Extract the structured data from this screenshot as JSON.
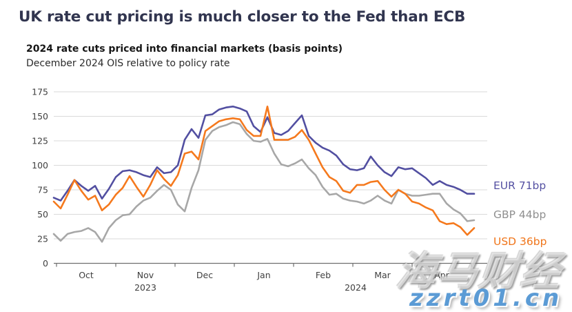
{
  "page_title": "UK rate cut pricing is much closer to the Fed than ECB",
  "chart": {
    "title": "2024 rate cuts priced into financial markets (basis points)",
    "subtitle": "December 2024 OIS relative to policy rate"
  },
  "watermark": {
    "line1": "海马财经",
    "line2": "zzrt01.cn",
    "line2_color": "#5b9bd5"
  },
  "chart_data": {
    "type": "line",
    "title": "2024 rate cuts priced into financial markets (basis points)",
    "subtitle": "December 2024 OIS relative to policy rate",
    "ylabel": "basis points",
    "ylim": [
      0,
      175
    ],
    "y_ticks": [
      175,
      150,
      125,
      100,
      75,
      50,
      25,
      0
    ],
    "x_month_ticks": [
      "Oct",
      "Nov",
      "Dec",
      "Jan",
      "Feb",
      "Mar",
      "Apr"
    ],
    "x_year_labels": [
      "2023",
      "2024"
    ],
    "x_span_note": "late Sep 2023 to end Apr 2024, sampled at equal intervals",
    "grid": true,
    "legend_position": "right",
    "axis_color": "#6e6e6e",
    "grid_color": "#d9d9d9",
    "tick_label_color": "#3f3f3f",
    "series": [
      {
        "name": "EUR",
        "legend": "EUR 71bp",
        "color": "#524fa1",
        "end_value": 71,
        "values": [
          67,
          64,
          74,
          85,
          79,
          74,
          79,
          66,
          76,
          88,
          94,
          95,
          93,
          90,
          88,
          98,
          92,
          93,
          100,
          126,
          137,
          128,
          151,
          152,
          157,
          159,
          160,
          158,
          155,
          140,
          134,
          149,
          133,
          131,
          135,
          143,
          151,
          130,
          123,
          118,
          115,
          110,
          101,
          96,
          95,
          97,
          109,
          100,
          93,
          89,
          98,
          96,
          97,
          92,
          87,
          80,
          84,
          80,
          78,
          75,
          71,
          71
        ]
      },
      {
        "name": "GBP",
        "legend": "GBP 44bp",
        "color": "#a7a7a7",
        "end_value": 44,
        "values": [
          30,
          23,
          30,
          32,
          33,
          36,
          32,
          22,
          36,
          44,
          49,
          50,
          58,
          64,
          67,
          74,
          80,
          75,
          60,
          53,
          77,
          95,
          126,
          135,
          139,
          141,
          144,
          142,
          132,
          125,
          124,
          127,
          112,
          101,
          99,
          102,
          106,
          97,
          90,
          78,
          70,
          71,
          66,
          64,
          63,
          61,
          64,
          69,
          64,
          61,
          75,
          71,
          69,
          69,
          70,
          71,
          71,
          61,
          55,
          51,
          43,
          44
        ]
      },
      {
        "name": "USD",
        "legend": "USD 36bp",
        "color": "#f5791d",
        "end_value": 36,
        "values": [
          63,
          56,
          70,
          85,
          74,
          65,
          69,
          54,
          60,
          70,
          77,
          89,
          78,
          68,
          80,
          95,
          86,
          79,
          90,
          112,
          114,
          106,
          135,
          140,
          145,
          147,
          148,
          147,
          136,
          130,
          130,
          160,
          126,
          126,
          126,
          129,
          136,
          126,
          112,
          98,
          88,
          84,
          74,
          72,
          80,
          80,
          83,
          84,
          75,
          68,
          75,
          71,
          63,
          61,
          57,
          54,
          43,
          40,
          41,
          37,
          29,
          36
        ]
      }
    ]
  }
}
